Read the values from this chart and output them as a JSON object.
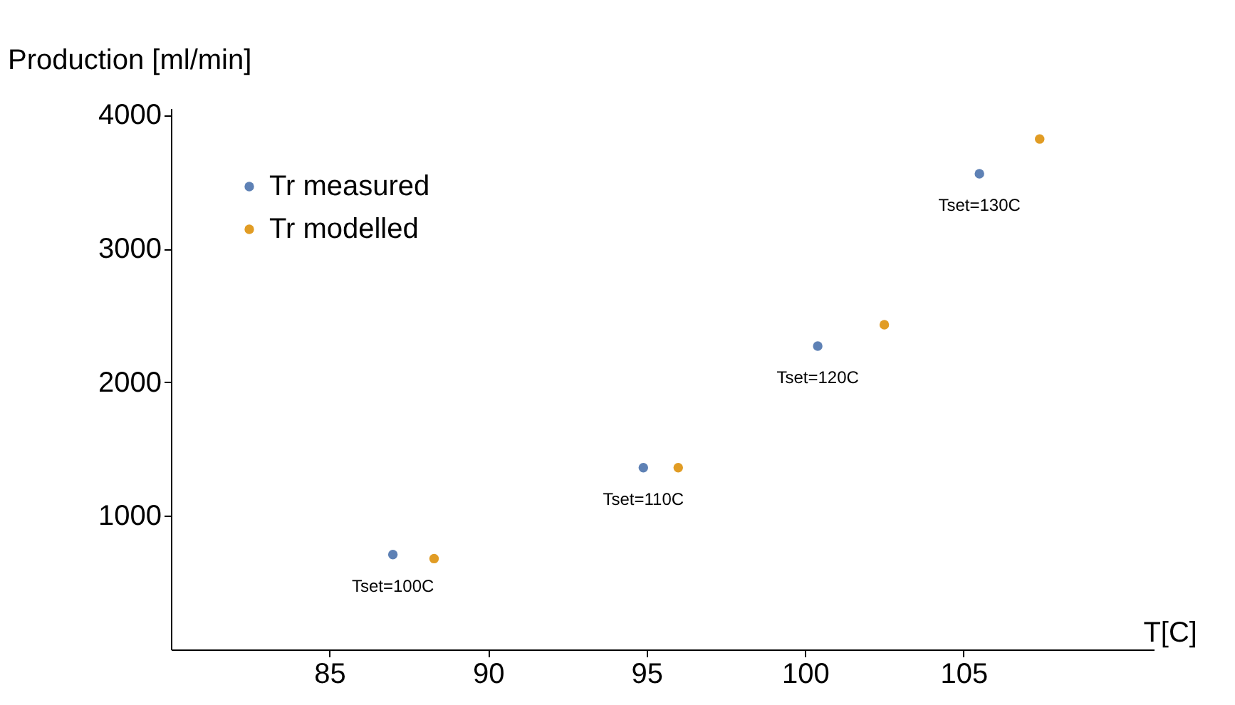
{
  "chart_data": {
    "type": "scatter",
    "xlabel": "T[C]",
    "ylabel": "Production [ml/min]",
    "xlim": [
      80,
      111
    ],
    "ylim": [
      0,
      4050
    ],
    "xticks": [
      85,
      90,
      95,
      100,
      105
    ],
    "yticks": [
      {
        "value": 1000,
        "label": "1000"
      },
      {
        "value": 2000,
        "label": "2000"
      },
      {
        "value": 3000,
        "label": "3000"
      },
      {
        "value": 4000,
        "label": "4000"
      }
    ],
    "grid": false,
    "legend": "top left",
    "marker": "circle",
    "series": [
      {
        "name": "Tr measured",
        "color": "#5e81b5",
        "x": [
          87.0,
          94.9,
          100.4,
          105.5
        ],
        "values": [
          710,
          1360,
          2270,
          3560
        ]
      },
      {
        "name": "Tr modelled",
        "color": "#e19c24",
        "x": [
          88.3,
          96.0,
          102.5,
          107.4
        ],
        "values": [
          680,
          1360,
          2430,
          3820
        ]
      }
    ],
    "annotations": [
      "Tset=100C",
      "Tset=110C",
      "Tset=120C",
      "Tset=130C"
    ]
  }
}
